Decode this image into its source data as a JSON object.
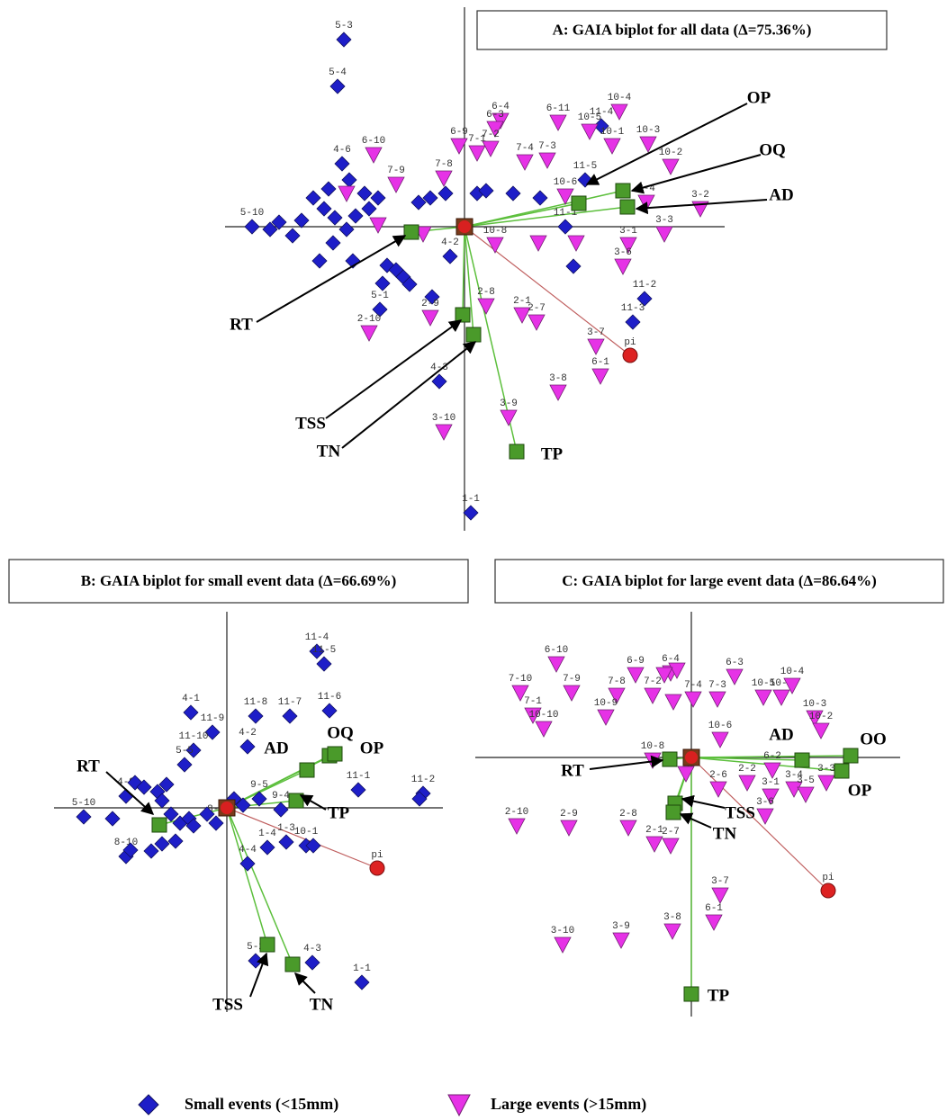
{
  "chart_data": [
    {
      "type": "biplot",
      "title": "A: GAIA biplot for all data (Δ=75.36%)",
      "xlim": [
        -266,
        289
      ],
      "ylim": [
        -338,
        244
      ],
      "series": [
        {
          "marker": "diamond",
          "color": "#1e1ec8",
          "x": [
            -134,
            -141,
            -136,
            -236,
            152,
            134,
            112,
            200,
            187,
            -28,
            7,
            -94,
            -16,
            -206,
            -191,
            -181,
            -161,
            -156,
            -144,
            -131,
            -124,
            -111,
            -106,
            -96,
            -86,
            -76,
            -68,
            -61,
            -51,
            -38,
            -36,
            -21,
            14,
            54,
            84,
            121,
            24,
            -121,
            -151,
            -168,
            -216,
            -91,
            -146,
            -128
          ],
          "values": [
            208,
            156,
            70,
            0,
            112,
            52,
            0,
            -80,
            -106,
            -172,
            -318,
            -92,
            -33,
            5,
            -10,
            7,
            -38,
            20,
            10,
            -3,
            -38,
            37,
            20,
            32,
            -43,
            -48,
            -56,
            -64,
            27,
            32,
            -78,
            37,
            37,
            37,
            32,
            -44,
            40,
            12,
            42,
            32,
            -3,
            -63,
            -18,
            52
          ],
          "labels": [
            "5-3",
            "5-4",
            "4-6",
            "5-10",
            "11-4",
            "11-5",
            "11-1",
            "11-2",
            "11-3",
            "4-3",
            "1-1",
            "5-1",
            "4-2",
            null,
            null,
            null,
            null,
            null,
            null,
            null,
            null,
            null,
            null,
            null,
            null,
            null,
            null,
            null,
            null,
            null,
            null,
            null,
            null,
            null,
            null,
            null,
            null,
            null,
            null,
            null,
            null,
            null,
            null,
            null
          ]
        },
        {
          "marker": "triangle",
          "color": "#e632e6",
          "x": [
            -101,
            -6,
            40,
            34,
            14,
            29,
            67,
            92,
            104,
            139,
            172,
            164,
            204,
            229,
            -23,
            -76,
            112,
            262,
            222,
            202,
            182,
            176,
            34,
            64,
            80,
            24,
            -38,
            -106,
            146,
            151,
            104,
            49,
            -23,
            82,
            124,
            -131,
            -96,
            -46
          ],
          "values": [
            80,
            90,
            118,
            109,
            82,
            87,
            72,
            74,
            116,
            106,
            128,
            90,
            92,
            67,
            54,
            47,
            34,
            20,
            -8,
            27,
            -20,
            -44,
            -20,
            -98,
            -106,
            -88,
            -101,
            -118,
            -133,
            -166,
            -184,
            -212,
            -228,
            -18,
            -18,
            37,
            2,
            -8
          ],
          "labels": [
            "6-10",
            "6-9",
            "6-4",
            "6-3",
            "7-1",
            "7-2",
            "7-4",
            "7-3",
            "6-11",
            "10-5",
            "10-4",
            "10-1",
            "10-3",
            "10-2",
            "7-8",
            "7-9",
            "10-6",
            "3-2",
            "3-3",
            "3-4",
            "3-1",
            "3-6",
            "10-8",
            "2-1",
            "2-7",
            "2-8",
            "2-9",
            "2-10",
            "3-7",
            "6-1",
            "3-8",
            "3-9",
            "3-10",
            null,
            null,
            null,
            null,
            null
          ]
        }
      ],
      "criteria": {
        "names": [
          "RT",
          "OP",
          "OQ",
          "AD",
          "TSS",
          "TN",
          "TP"
        ],
        "x": [
          -59,
          127,
          176,
          181,
          -2,
          10,
          58
        ],
        "values": [
          -6,
          26,
          40,
          22,
          -98,
          -120,
          -250
        ],
        "color": "#4a9a2a",
        "line_color": "#5cbf3c"
      },
      "pi": {
        "label": "pi",
        "x": 184,
        "y": -143,
        "color": "#dd2222",
        "line_color": "#c06060"
      }
    },
    {
      "type": "biplot",
      "title": "B: GAIA biplot for small event data (Δ=66.69%)",
      "xlim": [
        -192,
        240
      ],
      "ylim": [
        -227,
        218
      ],
      "series": [
        {
          "marker": "diamond",
          "color": "#1e1ec8",
          "x": [
            -159,
            -40,
            -16,
            -37,
            -47,
            23,
            32,
            70,
            114,
            100,
            108,
            146,
            218,
            45,
            66,
            88,
            23,
            32,
            95,
            150,
            36,
            60,
            -12,
            -112,
            -112,
            214,
            96,
            -102,
            -92,
            -77,
            -67,
            -72,
            -62,
            -52,
            -42,
            -37,
            -57,
            -72,
            -84,
            -107,
            -127,
            -22,
            8,
            18
          ],
          "values": [
            -10,
            106,
            84,
            64,
            48,
            68,
            102,
            102,
            108,
            174,
            160,
            20,
            16,
            -44,
            -38,
            -42,
            -62,
            -170,
            -172,
            -194,
            10,
            -2,
            -17,
            13,
            -54,
            10,
            -42,
            28,
            23,
            18,
            26,
            8,
            -7,
            -17,
            -12,
            -20,
            -37,
            -40,
            -48,
            -47,
            -12,
            -7,
            10,
            3
          ],
          "labels": [
            "5-10",
            "4-1",
            "11-9",
            "11-10",
            "5-5",
            "4-2",
            "11-8",
            "11-7",
            "11-6",
            "11-4",
            "11-5",
            "11-1",
            "11-2",
            "1-4",
            "1-3",
            "10-1",
            "4-4",
            "5-2",
            "4-3",
            "1-1",
            "9-5",
            "9-4",
            "8-1",
            "4-9",
            "8-10",
            null,
            null,
            null,
            null,
            null,
            null,
            null,
            null,
            null,
            null,
            null,
            null,
            null,
            null,
            null,
            null,
            null,
            null,
            null
          ]
        }
      ],
      "criteria": {
        "names": [
          "RT",
          "AD",
          "OQ",
          "OP",
          "TP",
          "TSS",
          "TN"
        ],
        "x": [
          -75,
          89,
          114,
          120,
          77,
          45,
          73
        ],
        "values": [
          -19,
          42,
          58,
          60,
          8,
          -152,
          -174
        ],
        "color": "#4a9a2a",
        "line_color": "#5cbf3c"
      },
      "pi": {
        "label": "pi",
        "x": 167,
        "y": -67,
        "color": "#dd2222",
        "line_color": "#c06060"
      }
    },
    {
      "type": "biplot",
      "title": "C: GAIA biplot for large event data (Δ=86.64%)",
      "xlim": [
        -240,
        232
      ],
      "ylim": [
        -288,
        162
      ],
      "series": [
        {
          "marker": "triangle",
          "color": "#e632e6",
          "x": [
            -150,
            -190,
            -133,
            -176,
            -164,
            -83,
            -62,
            -95,
            -43,
            -23,
            2,
            29,
            48,
            80,
            100,
            112,
            137,
            144,
            32,
            30,
            62,
            90,
            88,
            114,
            127,
            150,
            82,
            -194,
            -136,
            -70,
            -41,
            -23,
            32,
            25,
            -143,
            -78,
            -21,
            -43,
            -16,
            -30,
            -20,
            -6
          ],
          "values": [
            104,
            72,
            72,
            47,
            32,
            69,
            92,
            45,
            69,
            94,
            65,
            65,
            90,
            67,
            67,
            80,
            44,
            30,
            20,
            -35,
            -28,
            -14,
            -43,
            -35,
            -41,
            -28,
            -65,
            -76,
            -78,
            -78,
            -96,
            -98,
            -153,
            -183,
            -208,
            -203,
            -193,
            -3,
            97,
            92,
            62,
            -18
          ],
          "labels": [
            "6-10",
            "7-10",
            "7-9",
            "7-1",
            "10-10",
            "7-8",
            "6-9",
            "10-9",
            "7-2",
            "6-4",
            "7-4",
            "7-3",
            "6-3",
            "10-5",
            "10-1",
            "10-4",
            "10-3",
            "10-2",
            "10-6",
            "2-6",
            "2-2",
            "6-2",
            "3-1",
            "3-4",
            "3-5",
            "3-3",
            "3-6",
            "2-10",
            "2-9",
            "2-8",
            "2-1",
            "2-7",
            "3-7",
            "6-1",
            "3-10",
            "3-9",
            "3-8",
            "10-8",
            null,
            null,
            null,
            null
          ]
        }
      ],
      "criteria": {
        "names": [
          "RT",
          "AD",
          "OO",
          "OP",
          "TSS",
          "TN",
          "TP"
        ],
        "x": [
          -24,
          123,
          177,
          167,
          -18,
          -20,
          0
        ],
        "values": [
          -2,
          -3,
          2,
          -15,
          -51,
          -61,
          -263
        ],
        "color": "#4a9a2a",
        "line_color": "#5cbf3c"
      },
      "pi": {
        "label": "pi",
        "x": 152,
        "y": -148,
        "color": "#dd2222",
        "line_color": "#c06060"
      }
    }
  ],
  "legend": [
    {
      "name": "Small events (<15mm)",
      "marker": "diamond",
      "color": "#1e1ec8"
    },
    {
      "name": "Large events (>15mm)",
      "marker": "triangle",
      "color": "#e632e6"
    }
  ]
}
